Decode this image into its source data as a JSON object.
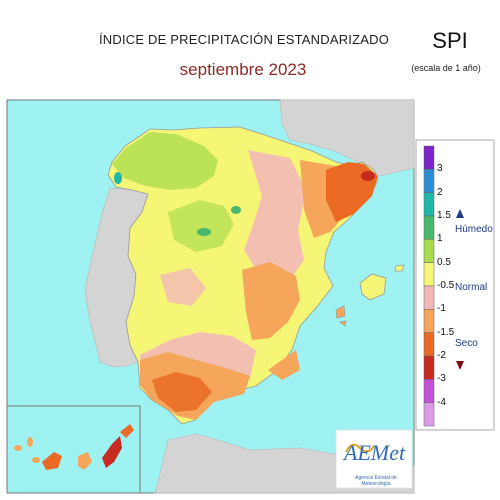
{
  "header": {
    "title": "ÍNDICE DE PRECIPITACIÓN ESTANDARIZADO",
    "subtitle": "septiembre 2023",
    "index_name": "SPI",
    "scale_note": "(escala de 1 año)"
  },
  "legend": {
    "ticks": [
      "3",
      "2",
      "1.5",
      "1",
      "0.5",
      "-0.5",
      "-1",
      "-1.5",
      "-2",
      "-3",
      "-4"
    ],
    "colors": [
      "#7b24c8",
      "#2c8fd6",
      "#1fb8a8",
      "#48b86a",
      "#a8dc4d",
      "#f5f576",
      "#f3b9b8",
      "#f5a65a",
      "#ea6a24",
      "#c72a20",
      "#c452d8",
      "#d99be6"
    ],
    "classes": {
      "humid": "Húmedo",
      "normal": "Normal",
      "dry": "Seco"
    },
    "arrow_colors": {
      "humid": "#1f3b8a",
      "dry": "#7a1010"
    }
  },
  "map": {
    "sea_color": "#9ff2f2",
    "land_outside_color": "#d4d4d4",
    "inset_region": "Islas Canarias"
  },
  "logo": {
    "name": "AEMet",
    "caption": "Agencia Estatal de Meteorología"
  }
}
